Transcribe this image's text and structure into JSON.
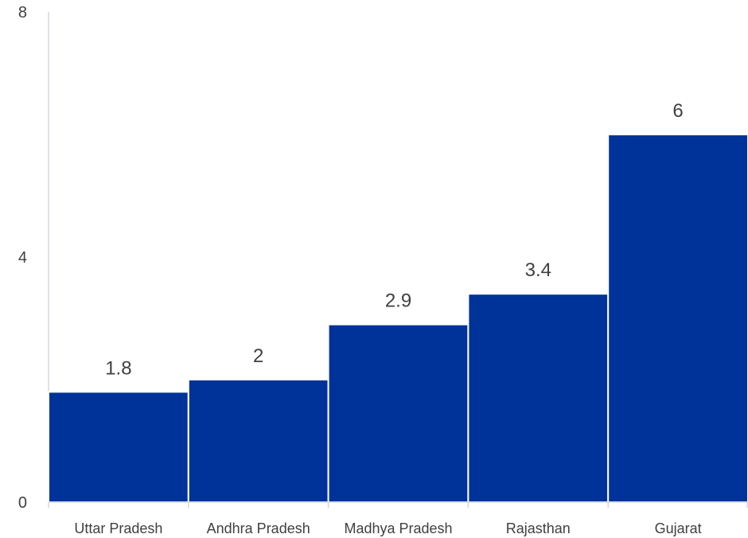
{
  "chart_data": {
    "type": "bar",
    "title": "",
    "xlabel": "",
    "ylabel": "",
    "categories": [
      "Uttar Pradesh",
      "Andhra Pradesh",
      "Madhya Pradesh",
      "Rajasthan",
      "Gujarat"
    ],
    "values": [
      1.8,
      2,
      2.9,
      3.4,
      6
    ],
    "data_labels": [
      "1.8",
      "2",
      "2.9",
      "3.4",
      "6"
    ],
    "ylim": [
      0,
      8
    ],
    "yticks": [
      0,
      4,
      8
    ],
    "ytick_labels": [
      "0",
      "4",
      "8"
    ],
    "grid": false,
    "legend": "none",
    "colors": {
      "bar": "#003399",
      "bar_separator": "#ffffff",
      "axis": "#d0d7e6",
      "text": "#404040"
    }
  }
}
